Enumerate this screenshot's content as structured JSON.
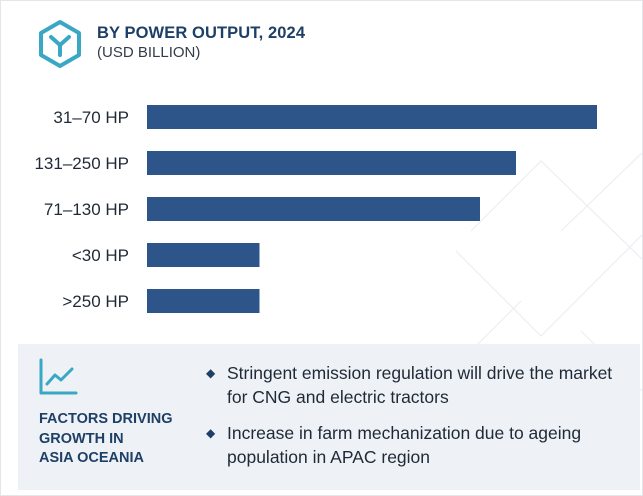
{
  "header": {
    "title": "BY POWER OUTPUT, 2024",
    "subtitle": "(USD BILLION)",
    "icon": "hexagon-y-logo-icon"
  },
  "colors": {
    "bar": "#2e5589",
    "accent": "#1e3f66",
    "panel": "#eef1f5",
    "icon_teal": "#3aa8c4"
  },
  "chart_data": {
    "type": "bar",
    "orientation": "horizontal",
    "categories": [
      "31–70 HP",
      "131–250 HP",
      "71–130 HP",
      "<30 HP",
      ">250 HP"
    ],
    "values": [
      100,
      82,
      74,
      25,
      25
    ],
    "title": "BY POWER OUTPUT, 2024",
    "subtitle": "(USD BILLION)",
    "xlabel": "",
    "ylabel": "",
    "xlim": [
      0,
      100
    ],
    "grid": false,
    "legend": "none"
  },
  "factors": {
    "icon": "line-chart-icon",
    "heading": "FACTORS DRIVING GROWTH IN ASIA OCEANIA",
    "heading_lines": [
      "FACTORS DRIVING",
      "GROWTH IN",
      "ASIA OCEANIA"
    ],
    "bullets": [
      "Stringent emission regulation will drive the market for CNG and electric tractors",
      "Increase in farm mechanization due to ageing population in APAC region"
    ]
  }
}
